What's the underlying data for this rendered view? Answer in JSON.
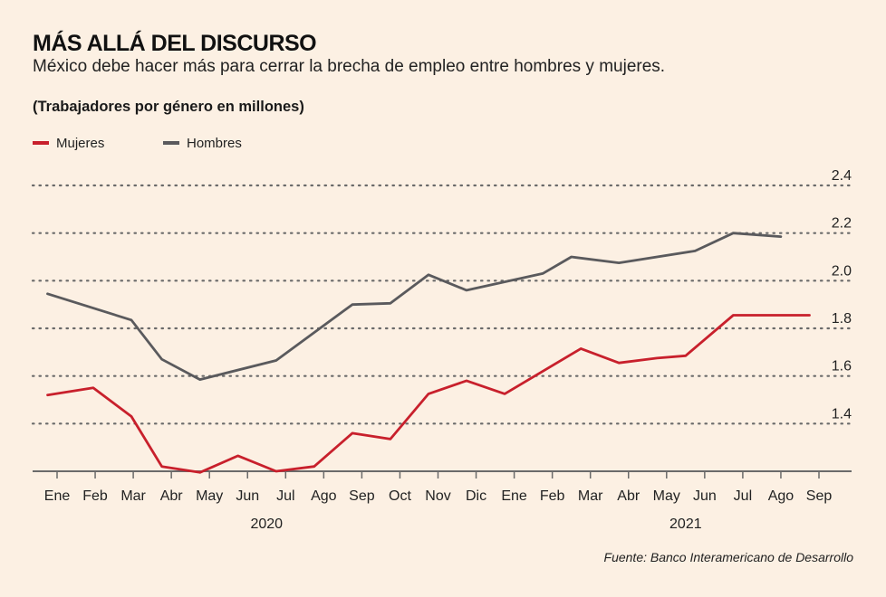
{
  "header": {
    "title": "MÁS ALLÁ DEL DISCURSO",
    "subtitle": "México debe hacer más para cerrar la brecha de empleo entre hombres y mujeres.",
    "unit_label": "(Trabajadores por género en millones)"
  },
  "source": "Fuente: Banco Interamericano de Desarrollo",
  "colors": {
    "mujeres": "#c8202c",
    "hombres": "#5a5a5d",
    "grid": "#6a6a6a",
    "axis": "#6a6a6a",
    "background": "#fcf0e3"
  },
  "chart_data": {
    "type": "line",
    "x": [
      "Ene",
      "Feb",
      "Mar",
      "Abr",
      "May",
      "Jun",
      "Jul",
      "Ago",
      "Sep",
      "Oct",
      "Nov",
      "Dic",
      "Ene",
      "Feb",
      "Mar",
      "Abr",
      "May",
      "Jun",
      "Jul",
      "Ago",
      "Sep"
    ],
    "year_labels": [
      {
        "label": "2020",
        "center_index": 5.5
      },
      {
        "label": "2021",
        "center_index": 16.5
      }
    ],
    "series": [
      {
        "name": "Mujeres",
        "color": "#c8202c",
        "points": [
          [
            -0.25,
            1.52
          ],
          [
            0.95,
            1.55
          ],
          [
            1.95,
            1.43
          ],
          [
            2.75,
            1.22
          ],
          [
            3.75,
            1.195
          ],
          [
            4.75,
            1.265
          ],
          [
            5.75,
            1.2
          ],
          [
            6.75,
            1.22
          ],
          [
            7.75,
            1.36
          ],
          [
            8.75,
            1.335
          ],
          [
            9.75,
            1.525
          ],
          [
            10.75,
            1.58
          ],
          [
            11.75,
            1.525
          ],
          [
            13.75,
            1.715
          ],
          [
            14.75,
            1.655
          ],
          [
            15.75,
            1.675
          ],
          [
            16.5,
            1.685
          ],
          [
            17.75,
            1.855
          ],
          [
            19.75,
            1.855
          ]
        ]
      },
      {
        "name": "Hombres",
        "color": "#5a5a5d",
        "points": [
          [
            -0.25,
            1.945
          ],
          [
            1.95,
            1.835
          ],
          [
            2.75,
            1.67
          ],
          [
            3.75,
            1.585
          ],
          [
            5.75,
            1.665
          ],
          [
            7.75,
            1.9
          ],
          [
            8.75,
            1.905
          ],
          [
            9.75,
            2.025
          ],
          [
            10.75,
            1.96
          ],
          [
            12.75,
            2.03
          ],
          [
            13.5,
            2.1
          ],
          [
            14.75,
            2.075
          ],
          [
            16.75,
            2.125
          ],
          [
            17.75,
            2.2
          ],
          [
            19.0,
            2.185
          ]
        ]
      }
    ],
    "ylim": [
      1.2,
      2.4
    ],
    "yticks": [
      1.4,
      1.6,
      1.8,
      2.0,
      2.2,
      2.4
    ],
    "ytick_labels": [
      "1.4",
      "1.6",
      "1.8",
      "2.0",
      "2.2",
      "2.4"
    ],
    "grid": true,
    "legend_placement": "top-left"
  }
}
